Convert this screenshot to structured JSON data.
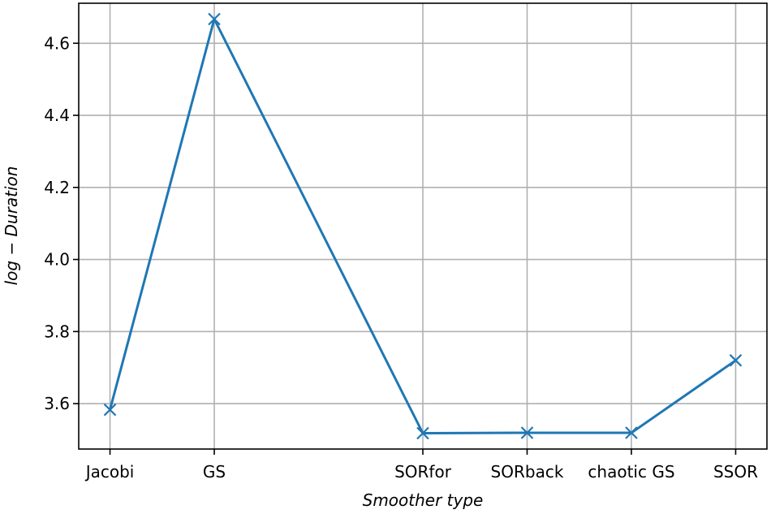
{
  "chart_data": {
    "type": "line",
    "title": "",
    "xlabel": "Smoother type",
    "ylabel": "log − Duration",
    "x": [
      0,
      1,
      3,
      4,
      5,
      6
    ],
    "categories": [
      "Jacobi",
      "GS",
      "SORfor",
      "SORback",
      "chaotic GS",
      "SSOR"
    ],
    "series": [
      {
        "values": [
          3.583,
          4.667,
          3.518,
          3.519,
          3.519,
          3.72
        ],
        "color": "#1f77b4",
        "marker": "x"
      }
    ],
    "yticks": [
      3.6,
      3.8,
      4.0,
      4.2,
      4.4,
      4.6
    ],
    "ytick_labels": [
      "3.6",
      "3.8",
      "4.0",
      "4.2",
      "4.4",
      "4.6"
    ],
    "xlim": [
      -0.3,
      6.3
    ],
    "ylim": [
      3.474,
      4.711
    ],
    "grid": true
  }
}
